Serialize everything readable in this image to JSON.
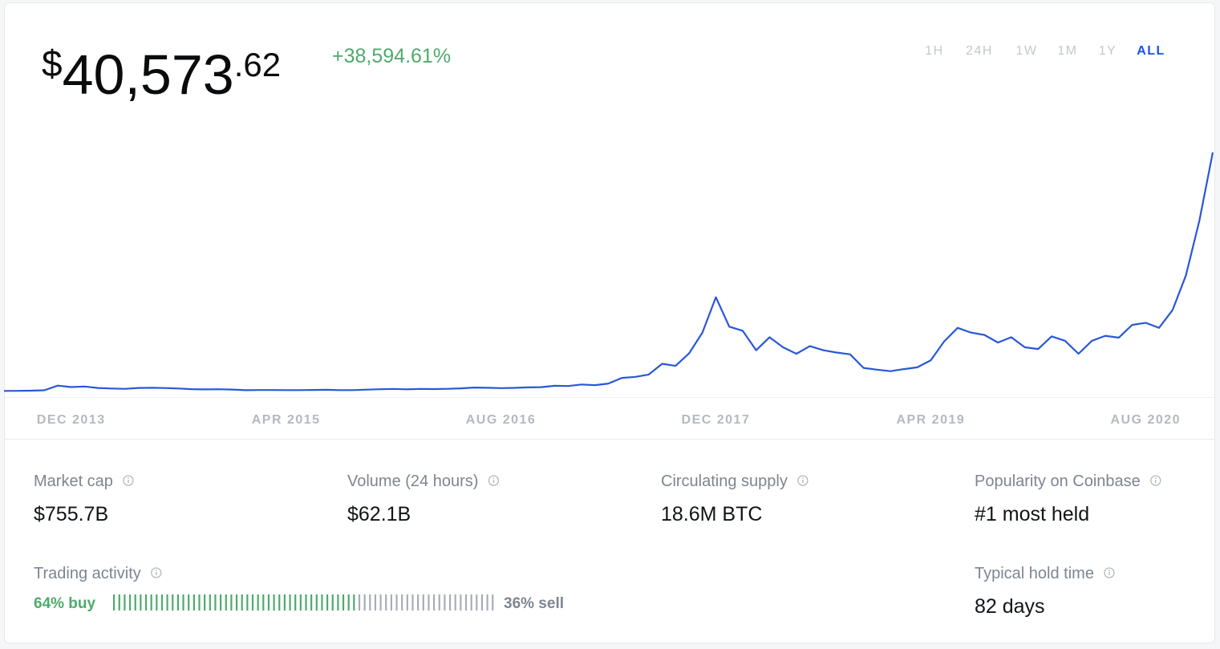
{
  "price": {
    "currency": "$",
    "whole": "40,573",
    "cents": ".62"
  },
  "change": "+38,594.61%",
  "ranges": [
    "1H",
    "24H",
    "1W",
    "1M",
    "1Y",
    "ALL"
  ],
  "selected_range": 5,
  "chart_data": {
    "type": "line",
    "color": "#2a57d8",
    "categories": [
      "",
      "",
      "",
      "",
      "",
      "DEC 2013",
      "",
      "",
      "",
      "",
      "",
      "",
      "",
      "",
      "",
      "",
      "",
      "",
      "",
      "",
      "",
      "APR 2015",
      "",
      "",
      "",
      "",
      "",
      "",
      "",
      "",
      "",
      "",
      "",
      "",
      "",
      "",
      "",
      "AUG 2016",
      "",
      "",
      "",
      "",
      "",
      "",
      "",
      "",
      "",
      "",
      "",
      "",
      "",
      "",
      "",
      "DEC 2017",
      "",
      "",
      "",
      "",
      "",
      "",
      "",
      "",
      "",
      "",
      "",
      "",
      "",
      "",
      "",
      "APR 2019",
      "",
      "",
      "",
      "",
      "",
      "",
      "",
      "",
      "",
      "",
      "",
      "",
      "",
      "",
      "",
      "AUG 2020",
      "",
      "",
      "",
      "",
      ""
    ],
    "values": [
      90,
      110,
      130,
      200,
      1000,
      750,
      850,
      600,
      500,
      450,
      600,
      620,
      590,
      500,
      400,
      350,
      380,
      320,
      220,
      250,
      250,
      230,
      235,
      260,
      285,
      230,
      235,
      315,
      380,
      430,
      370,
      440,
      415,
      450,
      530,
      670,
      620,
      575,
      610,
      700,
      740,
      960,
      920,
      1190,
      1070,
      1350,
      2300,
      2480,
      2870,
      4700,
      4340,
      6450,
      10000,
      16000,
      11000,
      10300,
      7000,
      9200,
      7500,
      6400,
      7700,
      7000,
      6600,
      6300,
      4000,
      3700,
      3450,
      3800,
      4100,
      5300,
      8500,
      10800,
      10000,
      9600,
      8300,
      9200,
      7500,
      7200,
      9350,
      8600,
      6400,
      8600,
      9450,
      9140,
      11300,
      11650,
      10800,
      13800,
      19700,
      29000,
      40573.62
    ]
  },
  "stats": [
    {
      "label": "Market cap",
      "value": "$755.7B"
    },
    {
      "label": "Volume (24 hours)",
      "value": "$62.1B"
    },
    {
      "label": "Circulating supply",
      "value": "18.6M BTC"
    },
    {
      "label": "Popularity on Coinbase",
      "value": "#1 most held"
    }
  ],
  "trading_activity": {
    "label": "Trading activity",
    "buy": 64,
    "buy_label": "64% buy",
    "sell": 36,
    "sell_label": "36% sell"
  },
  "hold_time": {
    "label": "Typical hold time",
    "value": "82 days"
  }
}
